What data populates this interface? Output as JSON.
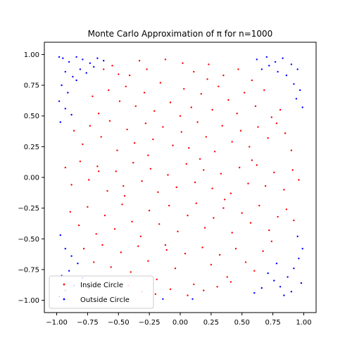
{
  "chart_data": {
    "type": "scatter",
    "title": "Monte Carlo Approximation of π for n=1000",
    "xlabel": "",
    "ylabel": "",
    "xlim": [
      -1.1,
      1.1
    ],
    "ylim": [
      -1.1,
      1.1
    ],
    "xticks": [
      -1.0,
      -0.75,
      -0.5,
      -0.25,
      0.0,
      0.25,
      0.5,
      0.75,
      1.0
    ],
    "xtick_labels": [
      "−1.00",
      "−0.75",
      "−0.50",
      "−0.25",
      "0.00",
      "0.25",
      "0.50",
      "0.75",
      "1.00"
    ],
    "yticks": [
      -1.0,
      -0.75,
      -0.5,
      -0.25,
      0.0,
      0.25,
      0.5,
      0.75,
      1.0
    ],
    "ytick_labels": [
      "−1.00",
      "−0.75",
      "−0.50",
      "−0.25",
      "0.00",
      "0.25",
      "0.50",
      "0.75",
      "1.00"
    ],
    "grid": false,
    "legend_position": "lower-left",
    "series": [
      {
        "name": "Inside Circle",
        "color": "#ff0000",
        "points": [
          [
            -0.62,
            0.88
          ],
          [
            -0.55,
            0.91
          ],
          [
            -0.41,
            0.83
          ],
          [
            -0.33,
            0.95
          ],
          [
            -0.27,
            0.88
          ],
          [
            -0.12,
            0.96
          ],
          [
            0.02,
            0.93
          ],
          [
            0.11,
            0.86
          ],
          [
            0.23,
            0.92
          ],
          [
            0.35,
            0.83
          ],
          [
            0.47,
            0.88
          ],
          [
            0.58,
            0.79
          ],
          [
            -0.71,
            0.66
          ],
          [
            -0.66,
            0.52
          ],
          [
            -0.58,
            0.71
          ],
          [
            -0.49,
            0.62
          ],
          [
            -0.44,
            0.74
          ],
          [
            -0.36,
            0.58
          ],
          [
            -0.29,
            0.69
          ],
          [
            -0.21,
            0.54
          ],
          [
            -0.16,
            0.77
          ],
          [
            -0.08,
            0.61
          ],
          [
            0.03,
            0.72
          ],
          [
            0.09,
            0.57
          ],
          [
            0.17,
            0.68
          ],
          [
            0.26,
            0.55
          ],
          [
            0.31,
            0.74
          ],
          [
            0.39,
            0.63
          ],
          [
            0.46,
            0.52
          ],
          [
            0.52,
            0.69
          ],
          [
            0.61,
            0.58
          ],
          [
            0.68,
            0.71
          ],
          [
            0.74,
            0.49
          ],
          [
            0.81,
            0.55
          ],
          [
            -0.86,
            0.38
          ],
          [
            -0.79,
            0.27
          ],
          [
            -0.73,
            0.42
          ],
          [
            -0.64,
            0.33
          ],
          [
            -0.57,
            0.46
          ],
          [
            -0.51,
            0.22
          ],
          [
            -0.43,
            0.39
          ],
          [
            -0.37,
            0.28
          ],
          [
            -0.28,
            0.44
          ],
          [
            -0.22,
            0.31
          ],
          [
            -0.14,
            0.41
          ],
          [
            -0.06,
            0.26
          ],
          [
            0.01,
            0.37
          ],
          [
            0.07,
            0.24
          ],
          [
            0.14,
            0.45
          ],
          [
            0.21,
            0.33
          ],
          [
            0.28,
            0.21
          ],
          [
            0.34,
            0.42
          ],
          [
            0.42,
            0.29
          ],
          [
            0.49,
            0.38
          ],
          [
            0.56,
            0.25
          ],
          [
            0.63,
            0.41
          ],
          [
            0.71,
            0.32
          ],
          [
            0.78,
            0.44
          ],
          [
            0.85,
            0.36
          ],
          [
            0.9,
            0.22
          ],
          [
            -0.93,
            0.08
          ],
          [
            -0.88,
            -0.06
          ],
          [
            -0.81,
            0.13
          ],
          [
            -0.74,
            -0.02
          ],
          [
            -0.67,
            0.09
          ],
          [
            -0.59,
            -0.11
          ],
          [
            -0.52,
            0.05
          ],
          [
            -0.46,
            -0.07
          ],
          [
            -0.38,
            0.12
          ],
          [
            -0.31,
            -0.03
          ],
          [
            -0.24,
            0.07
          ],
          [
            -0.18,
            -0.12
          ],
          [
            -0.1,
            0.02
          ],
          [
            -0.03,
            -0.08
          ],
          [
            0.05,
            0.11
          ],
          [
            0.12,
            -0.04
          ],
          [
            0.19,
            0.06
          ],
          [
            0.26,
            -0.09
          ],
          [
            0.33,
            0.03
          ],
          [
            0.41,
            -0.13
          ],
          [
            0.48,
            0.08
          ],
          [
            0.55,
            -0.05
          ],
          [
            0.62,
            0.1
          ],
          [
            0.69,
            -0.07
          ],
          [
            0.76,
            0.04
          ],
          [
            0.84,
            -0.1
          ],
          [
            0.91,
            0.06
          ],
          [
            0.96,
            -0.02
          ],
          [
            -0.89,
            -0.28
          ],
          [
            -0.82,
            -0.39
          ],
          [
            -0.75,
            -0.24
          ],
          [
            -0.68,
            -0.46
          ],
          [
            -0.61,
            -0.31
          ],
          [
            -0.53,
            -0.42
          ],
          [
            -0.47,
            -0.22
          ],
          [
            -0.39,
            -0.36
          ],
          [
            -0.32,
            -0.48
          ],
          [
            -0.25,
            -0.27
          ],
          [
            -0.17,
            -0.38
          ],
          [
            -0.09,
            -0.23
          ],
          [
            -0.02,
            -0.44
          ],
          [
            0.06,
            -0.31
          ],
          [
            0.13,
            -0.21
          ],
          [
            0.2,
            -0.41
          ],
          [
            0.27,
            -0.33
          ],
          [
            0.35,
            -0.25
          ],
          [
            0.42,
            -0.45
          ],
          [
            0.5,
            -0.29
          ],
          [
            0.57,
            -0.37
          ],
          [
            0.64,
            -0.23
          ],
          [
            0.72,
            -0.43
          ],
          [
            0.79,
            -0.32
          ],
          [
            0.86,
            -0.26
          ],
          [
            0.92,
            -0.35
          ],
          [
            -0.78,
            -0.58
          ],
          [
            -0.7,
            -0.69
          ],
          [
            -0.63,
            -0.55
          ],
          [
            -0.56,
            -0.73
          ],
          [
            -0.48,
            -0.61
          ],
          [
            -0.4,
            -0.77
          ],
          [
            -0.34,
            -0.56
          ],
          [
            -0.26,
            -0.68
          ],
          [
            -0.19,
            -0.83
          ],
          [
            -0.11,
            -0.59
          ],
          [
            -0.04,
            -0.74
          ],
          [
            0.04,
            -0.62
          ],
          [
            0.11,
            -0.87
          ],
          [
            0.18,
            -0.57
          ],
          [
            0.25,
            -0.71
          ],
          [
            0.32,
            -0.63
          ],
          [
            0.38,
            -0.81
          ],
          [
            0.45,
            -0.58
          ],
          [
            0.53,
            -0.69
          ],
          [
            0.6,
            -0.76
          ],
          [
            0.67,
            -0.6
          ],
          [
            0.74,
            -0.52
          ],
          [
            -0.42,
            -0.88
          ],
          [
            -0.31,
            -0.93
          ],
          [
            -0.2,
            -0.95
          ],
          [
            -0.08,
            -0.91
          ],
          [
            0.06,
            -0.96
          ],
          [
            0.19,
            -0.92
          ],
          [
            0.3,
            -0.89
          ],
          [
            0.41,
            -0.85
          ],
          [
            -0.66,
            0.05
          ],
          [
            -0.26,
            0.18
          ],
          [
            0.16,
            0.15
          ],
          [
            0.58,
            0.14
          ],
          [
            -0.45,
            -0.15
          ],
          [
            0.36,
            -0.18
          ],
          [
            0.0,
            0.5
          ],
          [
            -0.12,
            -0.55
          ],
          [
            0.22,
            0.8
          ],
          [
            -0.5,
            0.84
          ]
        ]
      },
      {
        "name": "Outside Circle",
        "color": "#0000ff",
        "points": [
          [
            -0.98,
            0.98
          ],
          [
            -0.95,
            0.97
          ],
          [
            -0.9,
            0.94
          ],
          [
            -0.84,
            0.98
          ],
          [
            -0.79,
            0.96
          ],
          [
            -0.73,
            0.93
          ],
          [
            -0.67,
            0.97
          ],
          [
            -0.93,
            0.86
          ],
          [
            -0.87,
            0.82
          ],
          [
            -0.81,
            0.88
          ],
          [
            -0.96,
            0.75
          ],
          [
            -0.91,
            0.69
          ],
          [
            -0.98,
            0.62
          ],
          [
            -0.93,
            0.56
          ],
          [
            -0.88,
            0.51
          ],
          [
            -0.97,
            0.45
          ],
          [
            -0.84,
            0.79
          ],
          [
            -0.76,
            0.85
          ],
          [
            -0.7,
            0.9
          ],
          [
            -0.62,
            0.95
          ],
          [
            0.62,
            0.96
          ],
          [
            0.7,
            0.98
          ],
          [
            0.77,
            0.94
          ],
          [
            0.83,
            0.97
          ],
          [
            0.9,
            0.92
          ],
          [
            0.95,
            0.88
          ],
          [
            0.86,
            0.83
          ],
          [
            0.79,
            0.86
          ],
          [
            0.92,
            0.76
          ],
          [
            0.97,
            0.71
          ],
          [
            0.94,
            0.64
          ],
          [
            0.99,
            0.57
          ],
          [
            0.72,
            0.91
          ],
          [
            0.66,
            0.88
          ],
          [
            -0.97,
            -0.47
          ],
          [
            -0.93,
            -0.58
          ],
          [
            -0.88,
            -0.64
          ],
          [
            -0.83,
            -0.7
          ],
          [
            -0.9,
            -0.76
          ],
          [
            -0.96,
            -0.8
          ],
          [
            -0.79,
            -0.82
          ],
          [
            -0.86,
            -0.88
          ],
          [
            -0.93,
            -0.92
          ],
          [
            -0.74,
            -0.9
          ],
          [
            -0.98,
            -0.97
          ],
          [
            0.71,
            -0.78
          ],
          [
            0.76,
            -0.84
          ],
          [
            0.81,
            -0.89
          ],
          [
            0.87,
            -0.81
          ],
          [
            0.92,
            -0.74
          ],
          [
            0.96,
            -0.66
          ],
          [
            0.9,
            -0.93
          ],
          [
            0.84,
            -0.96
          ],
          [
            0.98,
            -0.86
          ],
          [
            0.99,
            -0.58
          ],
          [
            0.95,
            -0.48
          ],
          [
            0.66,
            -0.9
          ],
          [
            0.6,
            -0.94
          ],
          [
            0.78,
            -0.7
          ],
          [
            0.1,
            -0.99
          ],
          [
            -0.14,
            -0.99
          ]
        ]
      }
    ]
  }
}
